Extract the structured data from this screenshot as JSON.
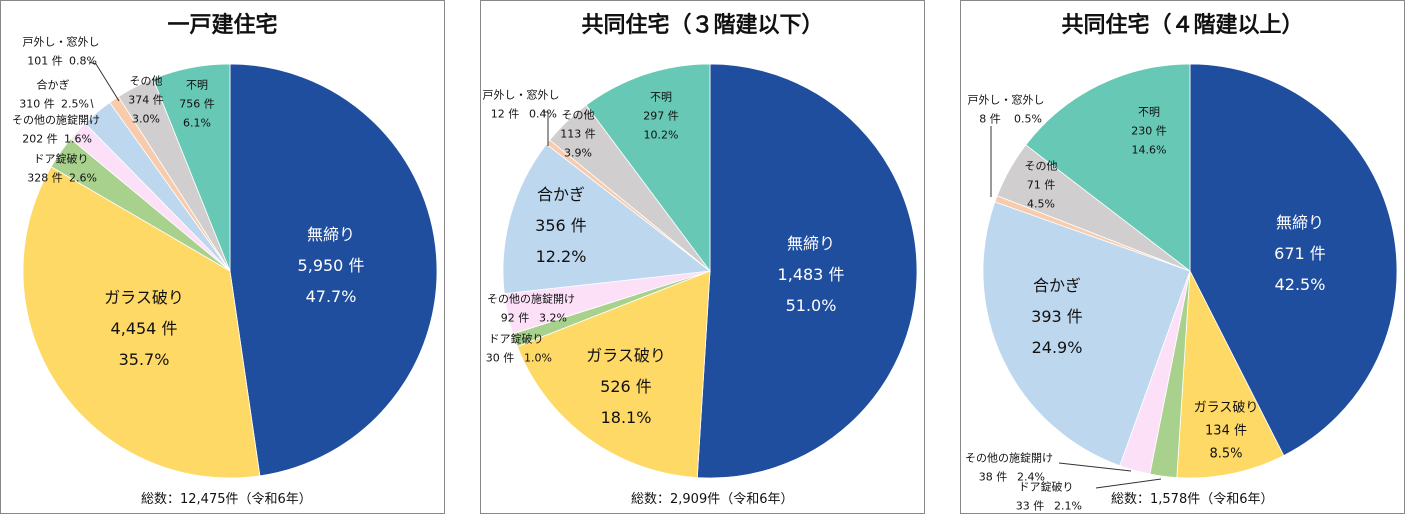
{
  "colors": {
    "無締り": "#1F4E9F",
    "ガラス破り": "#FFD966",
    "ドア錠破り": "#A9D18E",
    "その他の施錠開け": "#FBE0F7",
    "合かぎ": "#BDD7EE",
    "戸外し・窓外し": "#F8CBAD",
    "その他": "#D0CECE",
    "不明": "#66C8B5"
  },
  "chart_data": [
    {
      "type": "pie",
      "title": "一戸建住宅",
      "total": "総数：12,475件（令和6年）",
      "slices": [
        {
          "label": "無締り",
          "count": "5,950 件",
          "pct": "47.7%",
          "value": 5950
        },
        {
          "label": "ガラス破り",
          "count": "4,454 件",
          "pct": "35.7%",
          "value": 4454
        },
        {
          "label": "ドア錠破り",
          "count": "328 件",
          "pct": "2.6%",
          "value": 328
        },
        {
          "label": "その他の施錠開け",
          "count": "202 件",
          "pct": "1.6%",
          "value": 202
        },
        {
          "label": "合かぎ",
          "count": "310 件",
          "pct": "2.5%",
          "value": 310
        },
        {
          "label": "戸外し・窓外し",
          "count": "101 件",
          "pct": "0.8%",
          "value": 101
        },
        {
          "label": "その他",
          "count": "374 件",
          "pct": "3.0%",
          "value": 374
        },
        {
          "label": "不明",
          "count": "756 件",
          "pct": "6.1%",
          "value": 756
        }
      ]
    },
    {
      "type": "pie",
      "title": "共同住宅（３階建以下）",
      "total": "総数：2,909件（令和6年）",
      "slices": [
        {
          "label": "無締り",
          "count": "1,483 件",
          "pct": "51.0%",
          "value": 1483
        },
        {
          "label": "ガラス破り",
          "count": "526 件",
          "pct": "18.1%",
          "value": 526
        },
        {
          "label": "ドア錠破り",
          "count": "30 件",
          "pct": "1.0%",
          "value": 30
        },
        {
          "label": "その他の施錠開け",
          "count": "92 件",
          "pct": "3.2%",
          "value": 92
        },
        {
          "label": "合かぎ",
          "count": "356 件",
          "pct": "12.2%",
          "value": 356
        },
        {
          "label": "戸外し・窓外し",
          "count": "12 件",
          "pct": "0.4%",
          "value": 12
        },
        {
          "label": "その他",
          "count": "113 件",
          "pct": "3.9%",
          "value": 113
        },
        {
          "label": "不明",
          "count": "297 件",
          "pct": "10.2%",
          "value": 297
        }
      ]
    },
    {
      "type": "pie",
      "title": "共同住宅（４階建以上）",
      "total": "総数：1,578件（令和6年）",
      "slices": [
        {
          "label": "無締り",
          "count": "671 件",
          "pct": "42.5%",
          "value": 671
        },
        {
          "label": "ガラス破り",
          "count": "134 件",
          "pct": "8.5%",
          "value": 134
        },
        {
          "label": "ドア錠破り",
          "count": "33 件",
          "pct": "2.1%",
          "value": 33
        },
        {
          "label": "その他の施錠開け",
          "count": "38 件",
          "pct": "2.4%",
          "value": 38
        },
        {
          "label": "合かぎ",
          "count": "393 件",
          "pct": "24.9%",
          "value": 393
        },
        {
          "label": "戸外し・窓外し",
          "count": "8 件",
          "pct": "0.5%",
          "value": 8
        },
        {
          "label": "その他",
          "count": "71 件",
          "pct": "4.5%",
          "value": 71
        },
        {
          "label": "不明",
          "count": "230 件",
          "pct": "14.6%",
          "value": 230
        }
      ]
    }
  ]
}
